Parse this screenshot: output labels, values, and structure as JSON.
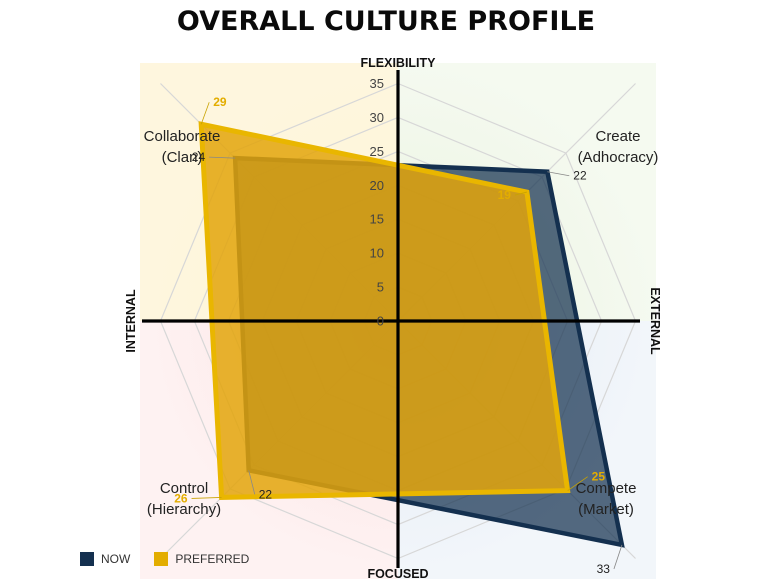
{
  "chart_data": {
    "type": "radar",
    "title": "OVERALL CULTURE PROFILE",
    "axes": {
      "top": "FLEXIBILITY",
      "bottom": "FOCUSED",
      "left": "INTERNAL",
      "right": "EXTERNAL"
    },
    "quadrants": [
      {
        "line1": "Collaborate",
        "line2": "(Clan)"
      },
      {
        "line1": "Create",
        "line2": "(Adhocracy)"
      },
      {
        "line1": "Compete",
        "line2": "(Market)"
      },
      {
        "line1": "Control",
        "line2": "(Hierarchy)"
      }
    ],
    "categories": [
      "Collaborate (Clan)",
      "Create (Adhocracy)",
      "Compete (Market)",
      "Control (Hierarchy)"
    ],
    "ticks": [
      0,
      5,
      10,
      15,
      20,
      25,
      30,
      35
    ],
    "ylim": [
      0,
      35
    ],
    "series": [
      {
        "name": "NOW",
        "values": [
          24,
          22,
          33,
          22
        ],
        "color": "#14304f"
      },
      {
        "name": "PREFERRED",
        "values": [
          29,
          19,
          25,
          26
        ],
        "color": "#e3ad00"
      }
    ]
  }
}
